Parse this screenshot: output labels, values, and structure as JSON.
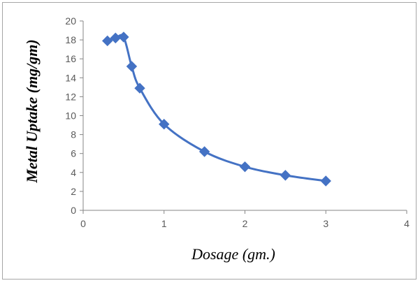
{
  "chart_data": {
    "type": "scatter",
    "title": "",
    "xlabel": "Dosage (gm.)",
    "ylabel": "Metal Uptake (mg/gm)",
    "xlim": [
      0,
      4
    ],
    "ylim": [
      0,
      20
    ],
    "x_ticks": [
      "0",
      "1",
      "2",
      "3",
      "4"
    ],
    "y_ticks": [
      "0",
      "2",
      "4",
      "6",
      "8",
      "10",
      "12",
      "14",
      "16",
      "18",
      "20"
    ],
    "grid": false,
    "legend": "none",
    "smooth_line": true,
    "series": [
      {
        "color": "#4472C4",
        "marker": "diamond",
        "points": [
          {
            "x": 0.3,
            "y": 17.9
          },
          {
            "x": 0.4,
            "y": 18.2
          },
          {
            "x": 0.5,
            "y": 18.3
          },
          {
            "x": 0.6,
            "y": 15.2
          },
          {
            "x": 0.7,
            "y": 12.9
          },
          {
            "x": 1.0,
            "y": 9.1
          },
          {
            "x": 1.5,
            "y": 6.2
          },
          {
            "x": 2.0,
            "y": 4.6
          },
          {
            "x": 2.5,
            "y": 3.7
          },
          {
            "x": 3.0,
            "y": 3.1
          }
        ]
      }
    ]
  },
  "colors": {
    "axis": "#868686",
    "tick_text": "#595959",
    "frame": "#a6a6a6"
  }
}
